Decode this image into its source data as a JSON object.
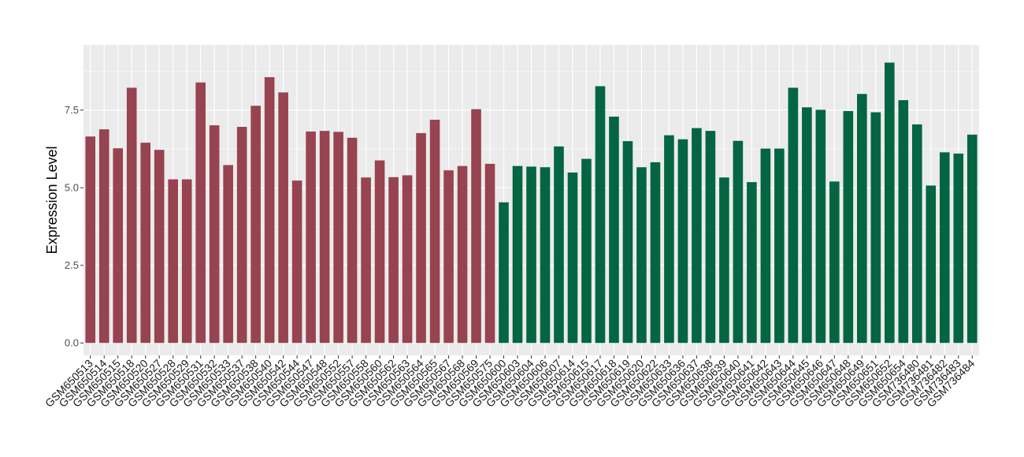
{
  "chart_data": {
    "type": "bar",
    "title": "",
    "xlabel": "",
    "ylabel": "Expression Level",
    "ylim": [
      -0.4,
      9.6
    ],
    "yticks": [
      0.0,
      2.5,
      5.0,
      7.5
    ],
    "ytick_labels": [
      "0.0",
      "2.5",
      "5.0",
      "7.5"
    ],
    "grid": true,
    "legend": "none",
    "colors": {
      "group1": "#974350",
      "group2": "#036542",
      "panel": "#ebebeb",
      "gridline": "#ffffff"
    },
    "categories": [
      "GSM650513",
      "GSM650514",
      "GSM650515",
      "GSM650518",
      "GSM650520",
      "GSM650527",
      "GSM650528",
      "GSM650529",
      "GSM650531",
      "GSM650532",
      "GSM650533",
      "GSM650537",
      "GSM650538",
      "GSM650540",
      "GSM650542",
      "GSM650544",
      "GSM650547",
      "GSM650548",
      "GSM650552",
      "GSM650557",
      "GSM650558",
      "GSM650560",
      "GSM650562",
      "GSM650563",
      "GSM650564",
      "GSM650565",
      "GSM650567",
      "GSM650568",
      "GSM650569",
      "GSM650575",
      "GSM650600",
      "GSM650603",
      "GSM650604",
      "GSM650606",
      "GSM650607",
      "GSM650614",
      "GSM650615",
      "GSM650617",
      "GSM650618",
      "GSM650619",
      "GSM650620",
      "GSM650622",
      "GSM650633",
      "GSM650636",
      "GSM650637",
      "GSM650638",
      "GSM650639",
      "GSM650640",
      "GSM650641",
      "GSM650642",
      "GSM650643",
      "GSM650644",
      "GSM650645",
      "GSM650646",
      "GSM650647",
      "GSM650648",
      "GSM650649",
      "GSM650651",
      "GSM650652",
      "GSM650654",
      "GSM736480",
      "GSM736481",
      "GSM736482",
      "GSM736483",
      "GSM736484"
    ],
    "values": [
      6.65,
      6.88,
      6.27,
      8.22,
      6.45,
      6.22,
      5.27,
      5.27,
      8.39,
      7.01,
      5.73,
      6.96,
      7.64,
      8.56,
      8.07,
      5.23,
      6.81,
      6.83,
      6.8,
      6.61,
      5.33,
      5.88,
      5.34,
      5.4,
      6.76,
      7.19,
      5.56,
      5.7,
      7.53,
      5.77,
      4.53,
      5.7,
      5.68,
      5.66,
      6.33,
      5.49,
      5.93,
      8.27,
      7.29,
      6.5,
      5.66,
      5.82,
      6.69,
      6.56,
      6.92,
      6.83,
      5.33,
      6.51,
      5.18,
      6.26,
      6.26,
      8.22,
      7.59,
      7.51,
      5.2,
      7.47,
      8.02,
      7.43,
      9.03,
      7.82,
      7.04,
      5.07,
      6.14,
      6.1,
      6.71
    ],
    "groups": [
      1,
      1,
      1,
      1,
      1,
      1,
      1,
      1,
      1,
      1,
      1,
      1,
      1,
      1,
      1,
      1,
      1,
      1,
      1,
      1,
      1,
      1,
      1,
      1,
      1,
      1,
      1,
      1,
      1,
      1,
      2,
      2,
      2,
      2,
      2,
      2,
      2,
      2,
      2,
      2,
      2,
      2,
      2,
      2,
      2,
      2,
      2,
      2,
      2,
      2,
      2,
      2,
      2,
      2,
      2,
      2,
      2,
      2,
      2,
      2,
      2,
      2,
      2,
      2,
      2
    ]
  }
}
